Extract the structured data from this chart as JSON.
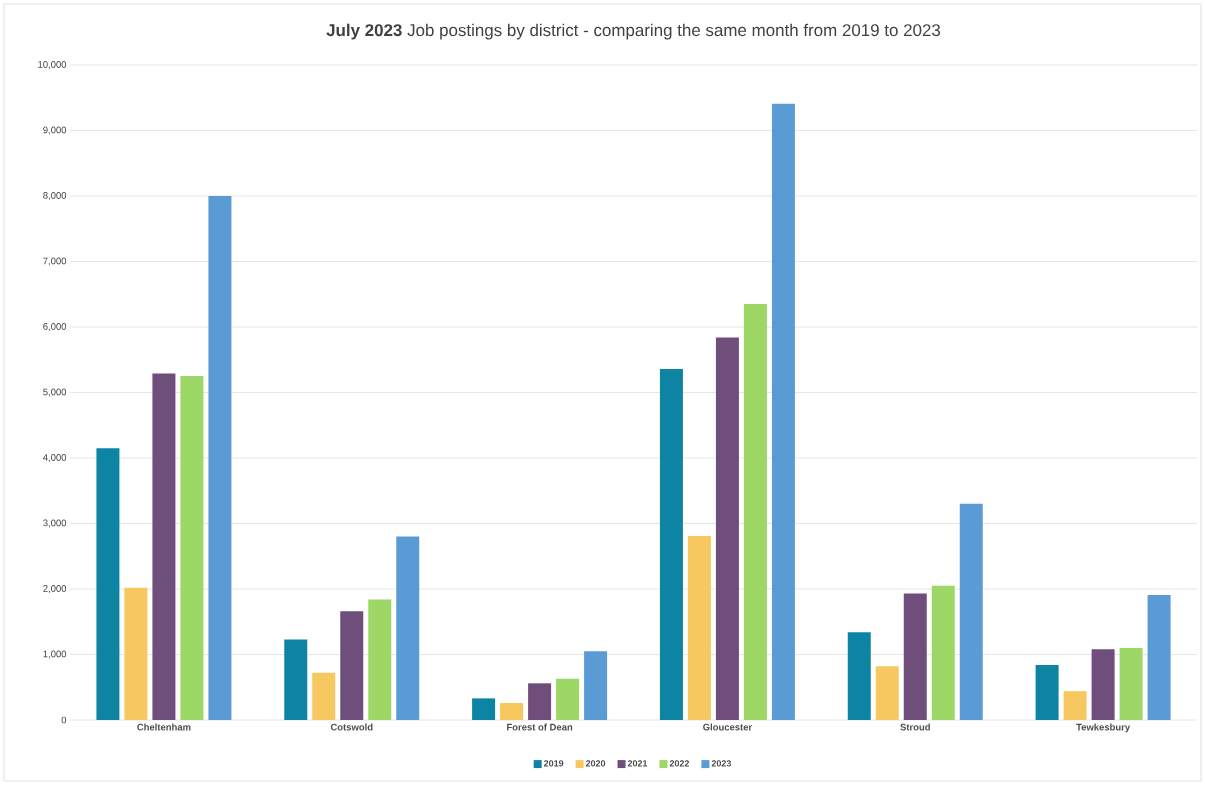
{
  "chart_data": {
    "type": "bar",
    "title": "**July 2023** Job postings by district - comparing the same month from 2019 to 2023",
    "categories": [
      "Cheltenham",
      "Cotswold",
      "Forest of Dean",
      "Gloucester",
      "Stroud",
      "Tewkesbury"
    ],
    "series": [
      {
        "name": "2019",
        "color": "#0e84a5",
        "values": [
          4150,
          1230,
          330,
          5360,
          1340,
          840
        ]
      },
      {
        "name": "2020",
        "color": "#f6c85f",
        "values": [
          2020,
          720,
          260,
          2810,
          820,
          440
        ]
      },
      {
        "name": "2021",
        "color": "#6f4e7c",
        "values": [
          5290,
          1660,
          560,
          5840,
          1930,
          1080
        ]
      },
      {
        "name": "2022",
        "color": "#9dd866",
        "values": [
          5250,
          1840,
          630,
          6350,
          2050,
          1100
        ]
      },
      {
        "name": "2023",
        "color": "#5b9bd5",
        "values": [
          8000,
          2800,
          1050,
          9410,
          3300,
          1910
        ]
      }
    ],
    "ylim": [
      0,
      10000
    ],
    "yticks": [
      0,
      {
        "value": 1000,
        "label": "1,000"
      },
      {
        "value": 2000,
        "label": "2,000"
      },
      {
        "value": 3000,
        "label": "3,000"
      },
      {
        "value": 4000,
        "label": "4,000"
      },
      {
        "value": 5000,
        "label": "5,000"
      },
      {
        "value": 6000,
        "label": "6,000"
      },
      {
        "value": 7000,
        "label": "7,000"
      },
      {
        "value": 8000,
        "label": "8,000"
      },
      {
        "value": 9000,
        "label": "9,000"
      },
      {
        "value": 10000,
        "label": "10,000"
      }
    ],
    "grid": "y",
    "legend": "bottom"
  }
}
